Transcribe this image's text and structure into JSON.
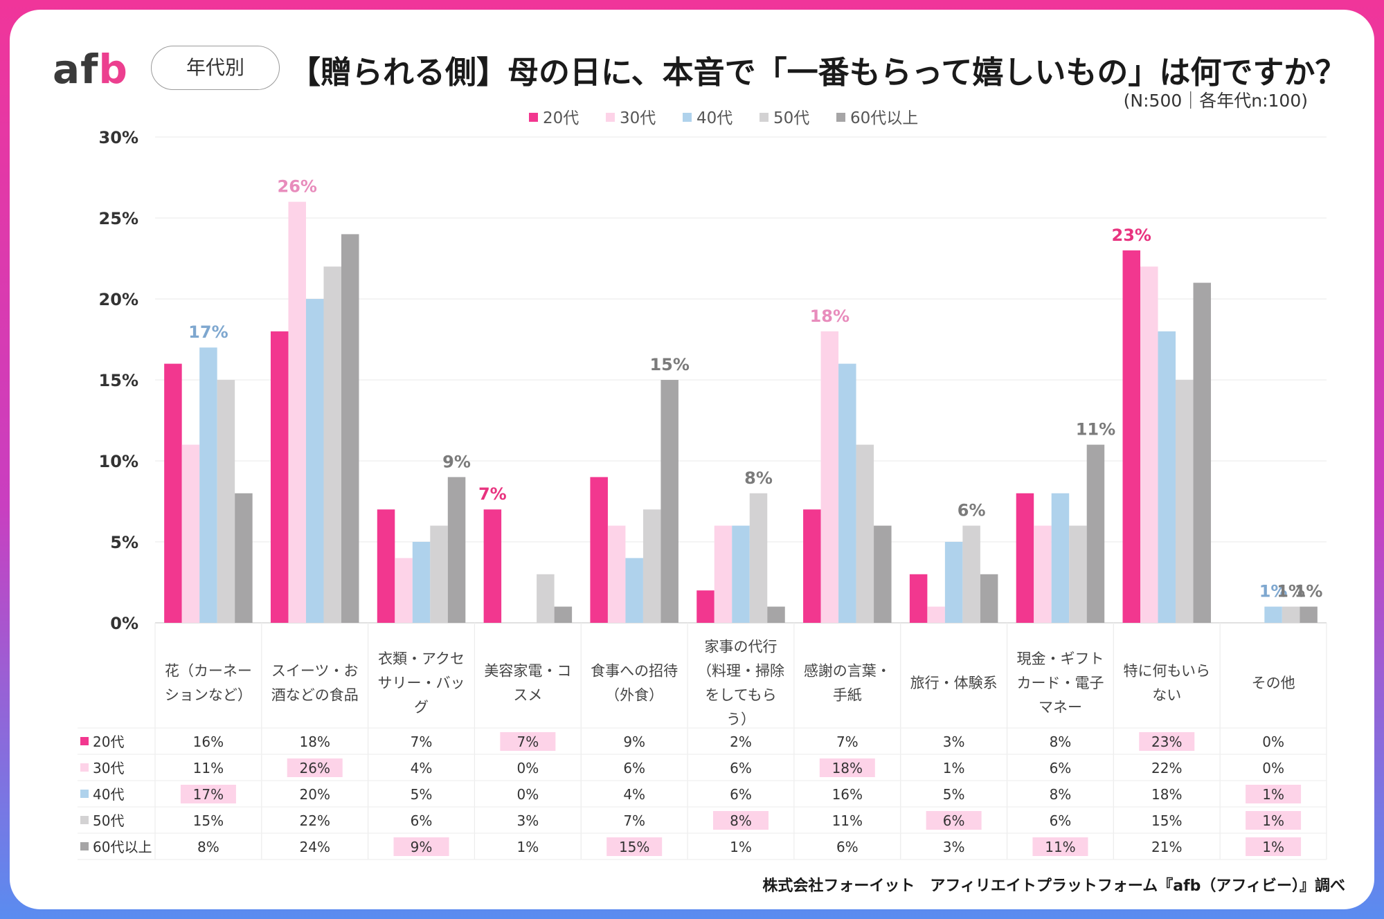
{
  "brand": {
    "logo_a": "a",
    "logo_f": "f",
    "logo_b": "b"
  },
  "header": {
    "segment_label": "年代別",
    "title": "【贈られる側】母の日に、本音で「一番もらって嬉しいもの」は何ですか？",
    "sample_note": "(N:500｜各年代n:100)"
  },
  "footer": {
    "credit": "株式会社フォーイット　アフィリエイトプラットフォーム『afb（アフィビー）』調べ"
  },
  "chart_data": {
    "type": "bar",
    "title": "【贈られる側】母の日に、本音で「一番もらって嬉しいもの」は何ですか？",
    "ylabel": "",
    "ylim": [
      0,
      30
    ],
    "yticks": [
      "0%",
      "5%",
      "10%",
      "15%",
      "20%",
      "25%",
      "30%"
    ],
    "categories": [
      [
        "花（カーネー",
        "ションなど）"
      ],
      [
        "スイーツ・お",
        "酒などの食品"
      ],
      [
        "衣類・アクセ",
        "サリー・バッ",
        "グ"
      ],
      [
        "美容家電・コ",
        "スメ"
      ],
      [
        "食事への招待",
        "（外食）"
      ],
      [
        "家事の代行",
        "（料理・掃除",
        "をしてもら",
        "う）"
      ],
      [
        "感謝の言葉・",
        "手紙"
      ],
      [
        "旅行・体験系"
      ],
      [
        "現金・ギフト",
        "カード・電子",
        "マネー"
      ],
      [
        "特に何もいら",
        "ない"
      ],
      [
        "その他"
      ]
    ],
    "series": [
      {
        "name": "20代",
        "color": "#f2378f",
        "values": [
          16,
          18,
          7,
          7,
          9,
          2,
          7,
          3,
          8,
          23,
          0
        ]
      },
      {
        "name": "30代",
        "color": "#fdd3e8",
        "values": [
          11,
          26,
          4,
          0,
          6,
          6,
          18,
          1,
          6,
          22,
          0
        ]
      },
      {
        "name": "40代",
        "color": "#afd2ec",
        "values": [
          17,
          20,
          5,
          0,
          4,
          6,
          16,
          5,
          8,
          18,
          1
        ]
      },
      {
        "name": "50代",
        "color": "#d3d2d3",
        "values": [
          15,
          22,
          6,
          3,
          7,
          8,
          11,
          6,
          6,
          15,
          1
        ]
      },
      {
        "name": "60代以上",
        "color": "#a6a5a6",
        "values": [
          8,
          24,
          9,
          1,
          15,
          1,
          6,
          3,
          11,
          21,
          1
        ]
      }
    ],
    "highlights": [
      {
        "category": 0,
        "series": 2,
        "label": "17%",
        "color": "#7ea7cf"
      },
      {
        "category": 1,
        "series": 1,
        "label": "26%",
        "color": "#e88cbc"
      },
      {
        "category": 2,
        "series": 4,
        "label": "9%",
        "color": "#7b7b7b"
      },
      {
        "category": 3,
        "series": 0,
        "label": "7%",
        "color": "#e8337f"
      },
      {
        "category": 4,
        "series": 4,
        "label": "15%",
        "color": "#7b7b7b"
      },
      {
        "category": 5,
        "series": 3,
        "label": "8%",
        "color": "#7b7b7b"
      },
      {
        "category": 6,
        "series": 1,
        "label": "18%",
        "color": "#e88cbc"
      },
      {
        "category": 7,
        "series": 3,
        "label": "6%",
        "color": "#7b7b7b"
      },
      {
        "category": 8,
        "series": 4,
        "label": "11%",
        "color": "#7b7b7b"
      },
      {
        "category": 9,
        "series": 0,
        "label": "23%",
        "color": "#e8337f"
      },
      {
        "category": 10,
        "series": 2,
        "label": "1%",
        "color": "#7ea7cf"
      },
      {
        "category": 10,
        "series": 3,
        "label": "1%",
        "color": "#7b7b7b"
      },
      {
        "category": 10,
        "series": 4,
        "label": "1%",
        "color": "#7b7b7b"
      }
    ],
    "legend_position": "top-center",
    "table": {
      "rows": [
        {
          "series": "20代",
          "cells": [
            "16%",
            "18%",
            "7%",
            "7%",
            "9%",
            "2%",
            "7%",
            "3%",
            "8%",
            "23%",
            "0%"
          ],
          "highlight": [
            3,
            9
          ]
        },
        {
          "series": "30代",
          "cells": [
            "11%",
            "26%",
            "4%",
            "0%",
            "6%",
            "6%",
            "18%",
            "1%",
            "6%",
            "22%",
            "0%"
          ],
          "highlight": [
            1,
            6
          ]
        },
        {
          "series": "40代",
          "cells": [
            "17%",
            "20%",
            "5%",
            "0%",
            "4%",
            "6%",
            "16%",
            "5%",
            "8%",
            "18%",
            "1%"
          ],
          "highlight": [
            0,
            10
          ]
        },
        {
          "series": "50代",
          "cells": [
            "15%",
            "22%",
            "6%",
            "3%",
            "7%",
            "8%",
            "11%",
            "6%",
            "6%",
            "15%",
            "1%"
          ],
          "highlight": [
            5,
            7,
            10
          ]
        },
        {
          "series": "60代以上",
          "cells": [
            "8%",
            "24%",
            "9%",
            "1%",
            "15%",
            "1%",
            "6%",
            "3%",
            "11%",
            "21%",
            "1%"
          ],
          "highlight": [
            2,
            4,
            8,
            10
          ]
        }
      ],
      "highlight_color": "#fdd3e8"
    }
  }
}
